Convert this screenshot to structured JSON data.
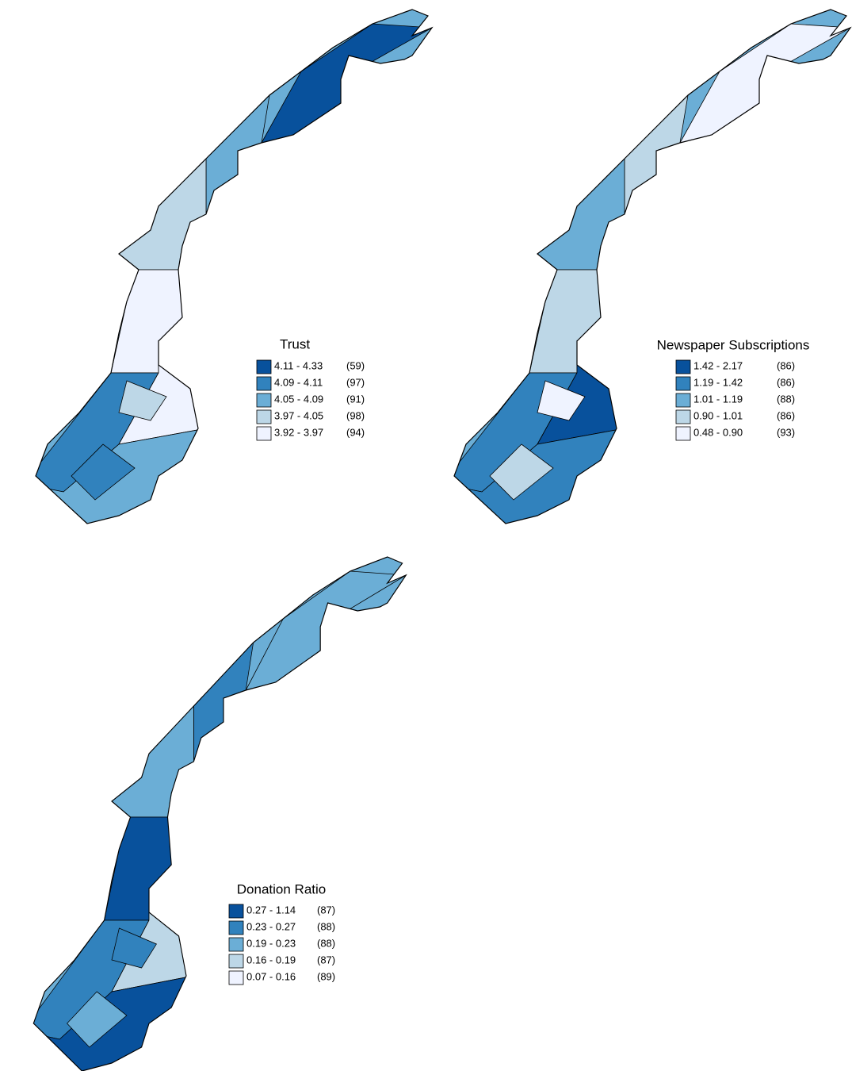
{
  "palette": [
    "#08519c",
    "#3182bd",
    "#6baed6",
    "#bdd7e7",
    "#eff3ff"
  ],
  "maps": [
    {
      "title": "Trust",
      "legend": [
        {
          "range": "4.11 - 4.33",
          "count": "(59)"
        },
        {
          "range": "4.09 - 4.11",
          "count": "(97)"
        },
        {
          "range": "4.05 - 4.09",
          "count": "(91)"
        },
        {
          "range": "3.97 - 4.05",
          "count": "(98)"
        },
        {
          "range": "3.92 - 3.97",
          "count": "(94)"
        }
      ]
    },
    {
      "title": "Newspaper Subscriptions",
      "legend": [
        {
          "range": "1.42 - 2.17",
          "count": "(86)"
        },
        {
          "range": "1.19 - 1.42",
          "count": "(86)"
        },
        {
          "range": "1.01 - 1.19",
          "count": "(88)"
        },
        {
          "range": "0.90 - 1.01",
          "count": "(86)"
        },
        {
          "range": "0.48 - 0.90",
          "count": "(93)"
        }
      ]
    },
    {
      "title": "Donation Ratio",
      "legend": [
        {
          "range": "0.27 - 1.14",
          "count": "(87)"
        },
        {
          "range": "0.23 - 0.27",
          "count": "(88)"
        },
        {
          "range": "0.19 - 0.23",
          "count": "(88)"
        },
        {
          "range": "0.16 - 0.19",
          "count": "(87)"
        },
        {
          "range": "0.07 - 0.16",
          "count": "(89)"
        }
      ]
    }
  ]
}
